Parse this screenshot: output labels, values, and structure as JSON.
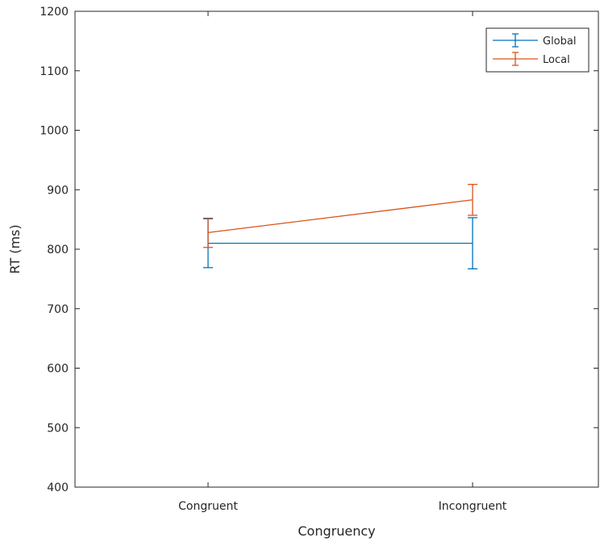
{
  "chart_data": {
    "type": "line",
    "title": "",
    "xlabel": "Congruency",
    "ylabel": "RT (ms)",
    "categories": [
      "Congruent",
      "Incongruent"
    ],
    "ylim": [
      400,
      1200
    ],
    "yticks": [
      400,
      500,
      600,
      700,
      800,
      900,
      1000,
      1100,
      1200
    ],
    "grid": false,
    "legend_position": "top-right",
    "series": [
      {
        "name": "Global",
        "color": "#0072BD",
        "values": [
          810,
          810
        ],
        "err_lower": [
          769,
          767
        ],
        "err_upper": [
          852,
          853
        ]
      },
      {
        "name": "Local",
        "color": "#D95319",
        "values": [
          828,
          883
        ],
        "err_lower": [
          803,
          857
        ],
        "err_upper": [
          851,
          909
        ]
      }
    ]
  }
}
